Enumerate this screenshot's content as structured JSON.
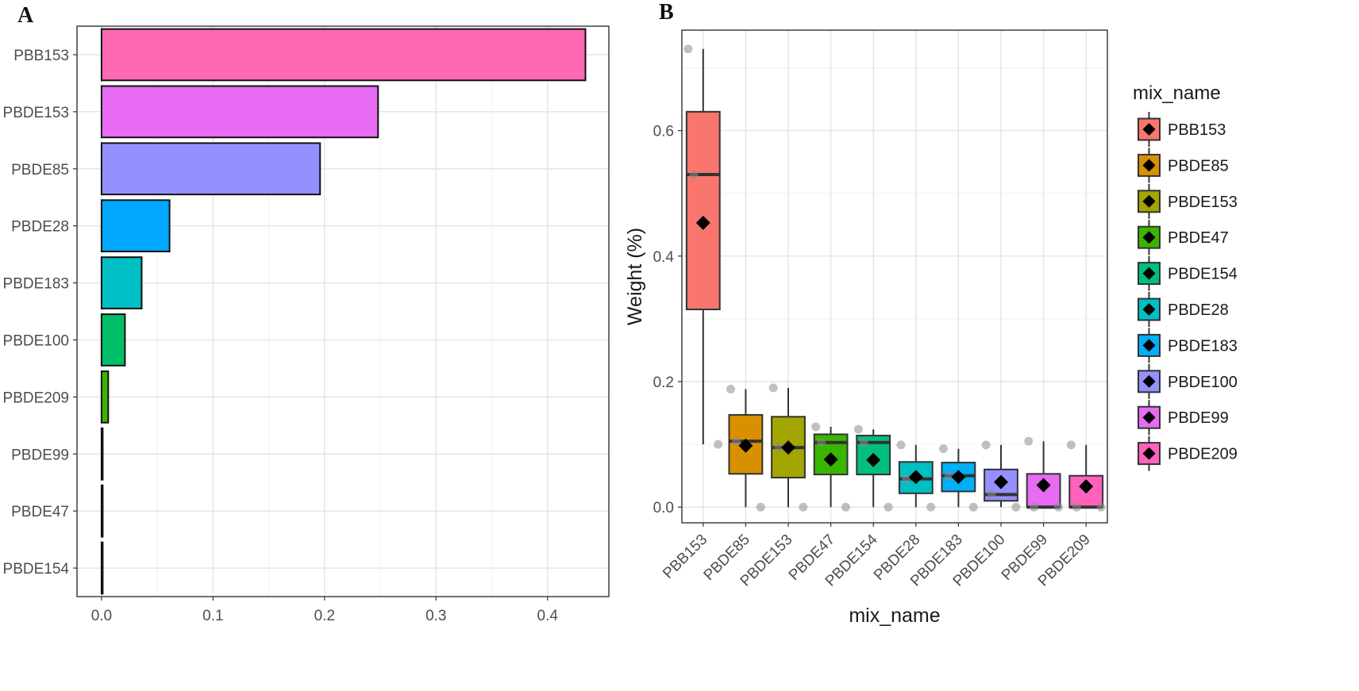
{
  "figure": {
    "panel_a_label": "A",
    "panel_b_label": "B"
  },
  "chart_data": [
    {
      "type": "bar",
      "orientation": "horizontal",
      "title": "",
      "xlabel": "",
      "ylabel": "",
      "xlim": [
        -0.022,
        0.455
      ],
      "x_ticks": [
        0.0,
        0.1,
        0.2,
        0.3,
        0.4
      ],
      "x_tick_labels": [
        "0.0",
        "0.1",
        "0.2",
        "0.3",
        "0.4"
      ],
      "grid": true,
      "categories": [
        "PBB153",
        "PBDE153",
        "PBDE85",
        "PBDE28",
        "PBDE183",
        "PBDE100",
        "PBDE209",
        "PBDE99",
        "PBDE47",
        "PBDE154"
      ],
      "values": [
        0.434,
        0.248,
        0.196,
        0.061,
        0.036,
        0.021,
        0.006,
        0.0,
        0.0,
        0.0
      ],
      "colors": [
        "#FF68B4",
        "#E76BF3",
        "#9590FF",
        "#00A9FF",
        "#00BFC4",
        "#00BE67",
        "#39B600",
        "#E76BF3",
        "#39B600",
        "#00BF7D"
      ]
    },
    {
      "type": "box",
      "title": "",
      "xlabel": "mix_name",
      "ylabel": "Weight (%)",
      "ylim": [
        -0.025,
        0.76
      ],
      "y_ticks": [
        0.0,
        0.2,
        0.4,
        0.6
      ],
      "y_tick_labels": [
        "0.0",
        "0.2",
        "0.4",
        "0.6"
      ],
      "grid": true,
      "legend": {
        "title": "mix_name",
        "position": "right"
      },
      "categories": [
        "PBB153",
        "PBDE85",
        "PBDE153",
        "PBDE47",
        "PBDE154",
        "PBDE28",
        "PBDE183",
        "PBDE100",
        "PBDE99",
        "PBDE209"
      ],
      "colors": [
        "#F8766D",
        "#D89000",
        "#A3A500",
        "#39B600",
        "#00BF7D",
        "#00BFC4",
        "#00B0F6",
        "#9590FF",
        "#E76BF3",
        "#FF62BC"
      ],
      "boxes": [
        {
          "name": "PBB153",
          "min": 0.1,
          "q1": 0.315,
          "median": 0.53,
          "q3": 0.63,
          "max": 0.73,
          "mean": 0.453,
          "points": [
            0.73,
            0.53,
            0.1
          ]
        },
        {
          "name": "PBDE85",
          "min": 0.0,
          "q1": 0.053,
          "median": 0.105,
          "q3": 0.147,
          "max": 0.188,
          "mean": 0.098,
          "points": [
            0.188,
            0.105,
            0.0
          ]
        },
        {
          "name": "PBDE153",
          "min": 0.0,
          "q1": 0.047,
          "median": 0.095,
          "q3": 0.144,
          "max": 0.19,
          "mean": 0.095,
          "points": [
            0.19,
            0.095,
            0.0
          ]
        },
        {
          "name": "PBDE47",
          "min": 0.0,
          "q1": 0.052,
          "median": 0.103,
          "q3": 0.116,
          "max": 0.128,
          "mean": 0.076,
          "points": [
            0.128,
            0.103,
            0.0
          ]
        },
        {
          "name": "PBDE154",
          "min": 0.0,
          "q1": 0.052,
          "median": 0.103,
          "q3": 0.114,
          "max": 0.124,
          "mean": 0.075,
          "points": [
            0.124,
            0.103,
            0.0
          ]
        },
        {
          "name": "PBDE28",
          "min": 0.0,
          "q1": 0.022,
          "median": 0.045,
          "q3": 0.072,
          "max": 0.099,
          "mean": 0.048,
          "points": [
            0.099,
            0.045,
            0.0
          ]
        },
        {
          "name": "PBDE183",
          "min": 0.0,
          "q1": 0.025,
          "median": 0.05,
          "q3": 0.071,
          "max": 0.093,
          "mean": 0.048,
          "points": [
            0.093,
            0.05,
            0.0
          ]
        },
        {
          "name": "PBDE100",
          "min": 0.0,
          "q1": 0.01,
          "median": 0.02,
          "q3": 0.06,
          "max": 0.099,
          "mean": 0.04,
          "points": [
            0.099,
            0.02,
            0.0
          ]
        },
        {
          "name": "PBDE99",
          "min": 0.0,
          "q1": 0.0,
          "median": 0.0,
          "q3": 0.053,
          "max": 0.105,
          "mean": 0.035,
          "points": [
            0.105,
            0.0,
            0.0
          ]
        },
        {
          "name": "PBDE209",
          "min": 0.0,
          "q1": 0.0,
          "median": 0.0,
          "q3": 0.05,
          "max": 0.099,
          "mean": 0.033,
          "points": [
            0.099,
            0.0,
            0.0
          ]
        }
      ]
    }
  ]
}
